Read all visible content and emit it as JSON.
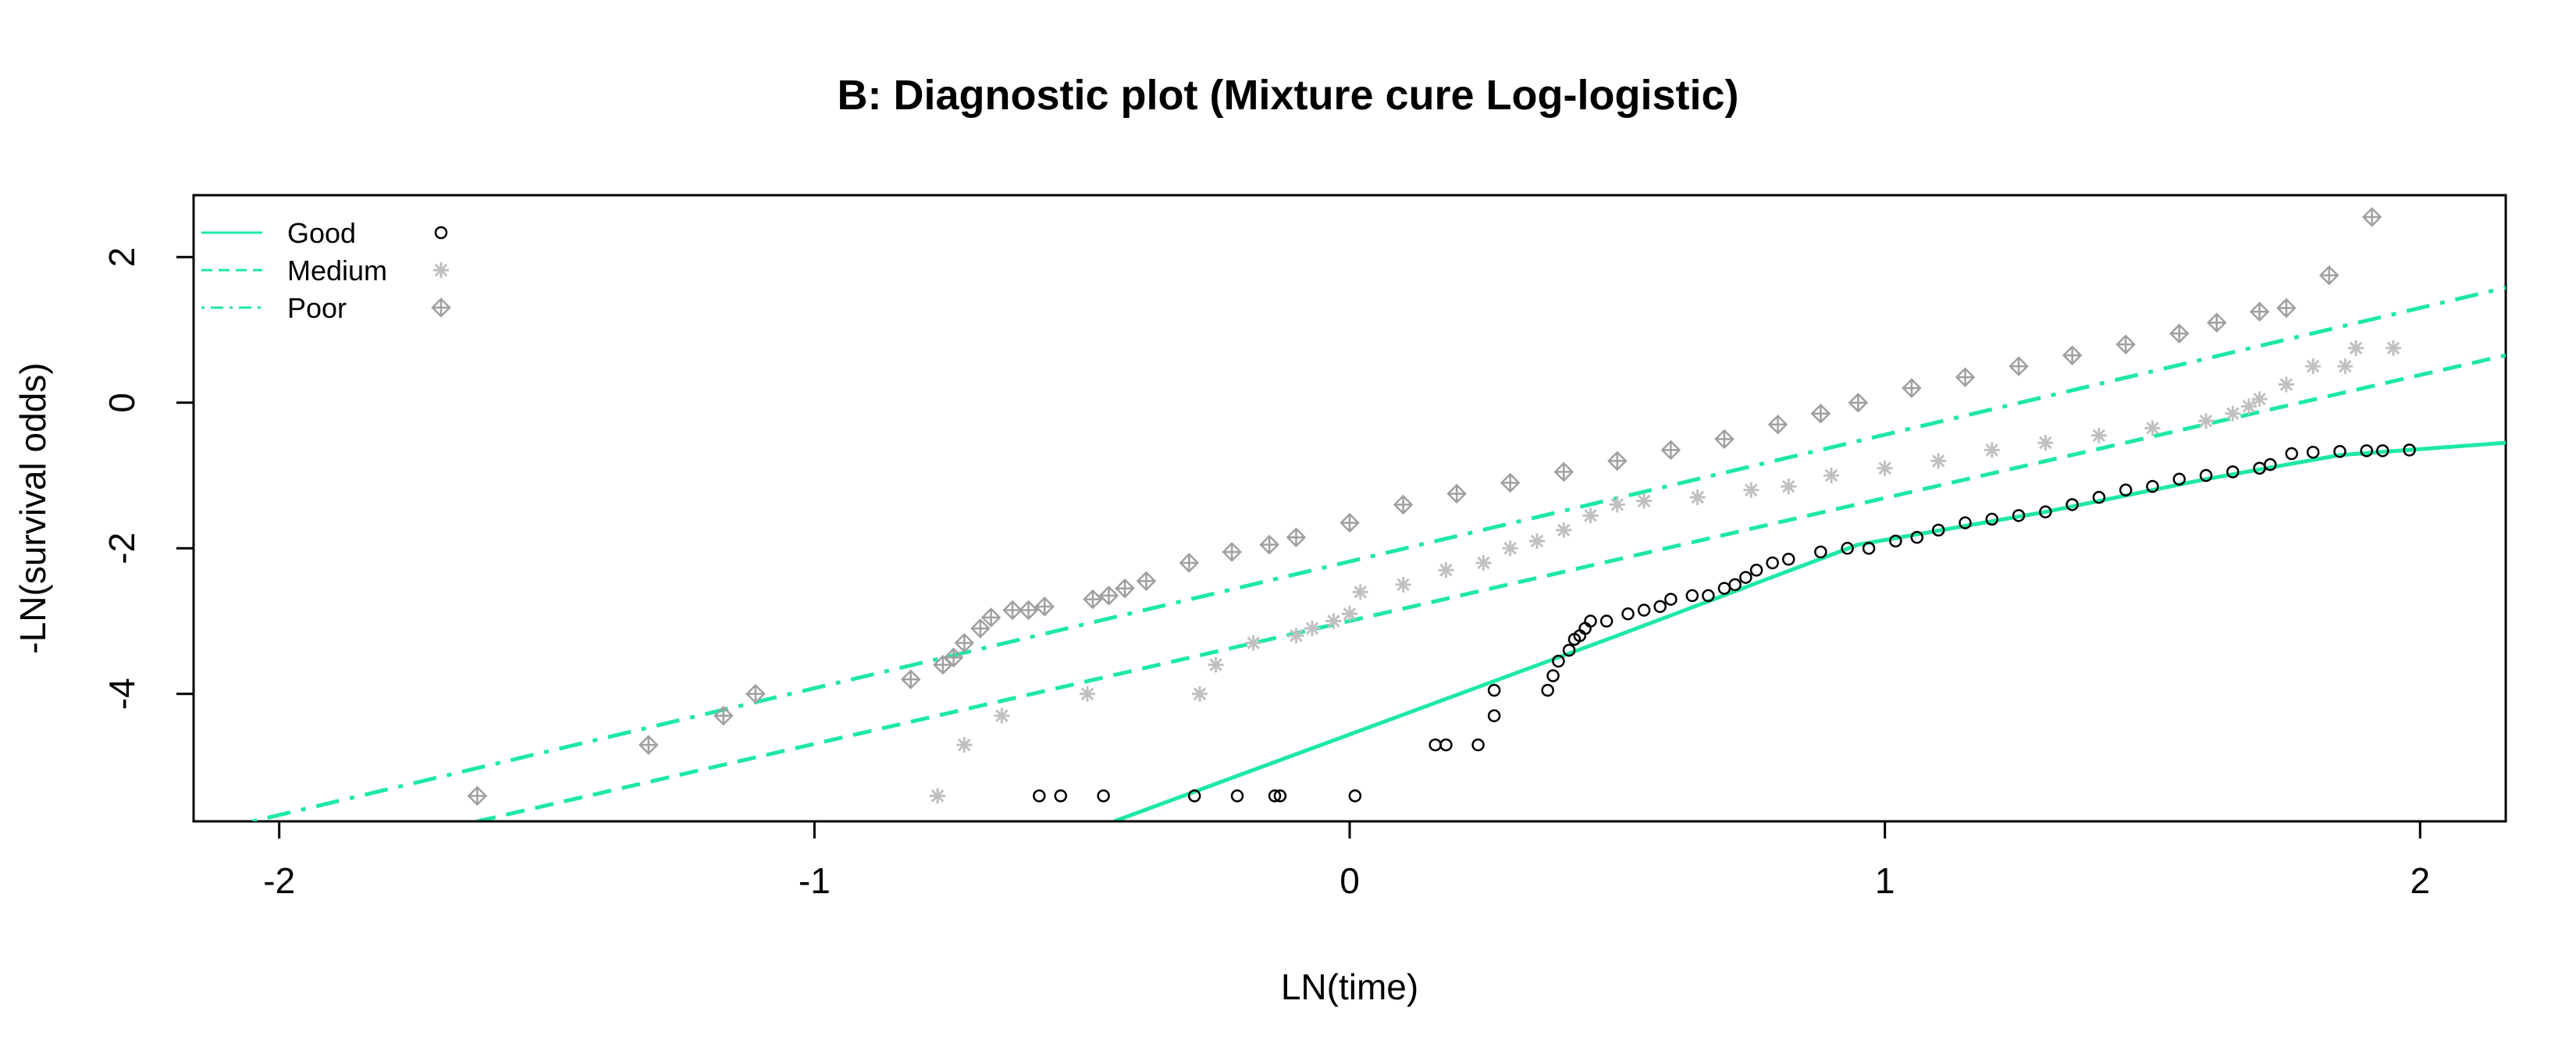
{
  "chart_data": {
    "type": "scatter",
    "title": "B: Diagnostic plot (Mixture cure Log-logistic)",
    "xlabel": "LN(time)",
    "ylabel": "-LN(survival odds)",
    "xlim": [
      -2.16,
      2.16
    ],
    "ylim": [
      -5.75,
      2.85
    ],
    "xticks": [
      -2,
      -1,
      0,
      1,
      2
    ],
    "yticks": [
      -4,
      -2,
      0,
      2
    ],
    "grid": false,
    "legend_position": "top-left",
    "series": [
      {
        "name": "Good",
        "color_line": "#1DE9A2",
        "line_style": "solid",
        "marker": "circle",
        "marker_color": "#000000",
        "fitted_line": [
          [
            -0.44,
            -5.75
          ],
          [
            0.5,
            -3.2
          ],
          [
            0.95,
            -1.95
          ],
          [
            1.3,
            -1.5
          ],
          [
            1.6,
            -1.05
          ],
          [
            1.85,
            -0.72
          ],
          [
            2.16,
            -0.55
          ]
        ],
        "points": [
          [
            -0.58,
            -5.4
          ],
          [
            -0.54,
            -5.4
          ],
          [
            -0.46,
            -5.4
          ],
          [
            -0.29,
            -5.4
          ],
          [
            -0.21,
            -5.4
          ],
          [
            -0.14,
            -5.4
          ],
          [
            -0.13,
            -5.4
          ],
          [
            0.01,
            -5.4
          ],
          [
            0.16,
            -4.7
          ],
          [
            0.18,
            -4.7
          ],
          [
            0.24,
            -4.7
          ],
          [
            0.27,
            -4.3
          ],
          [
            0.27,
            -3.95
          ],
          [
            0.37,
            -3.95
          ],
          [
            0.38,
            -3.75
          ],
          [
            0.39,
            -3.55
          ],
          [
            0.41,
            -3.4
          ],
          [
            0.42,
            -3.25
          ],
          [
            0.43,
            -3.2
          ],
          [
            0.44,
            -3.1
          ],
          [
            0.45,
            -3.0
          ],
          [
            0.48,
            -3.0
          ],
          [
            0.52,
            -2.9
          ],
          [
            0.55,
            -2.85
          ],
          [
            0.58,
            -2.8
          ],
          [
            0.6,
            -2.7
          ],
          [
            0.64,
            -2.65
          ],
          [
            0.67,
            -2.65
          ],
          [
            0.7,
            -2.55
          ],
          [
            0.72,
            -2.5
          ],
          [
            0.74,
            -2.4
          ],
          [
            0.76,
            -2.3
          ],
          [
            0.79,
            -2.2
          ],
          [
            0.82,
            -2.15
          ],
          [
            0.88,
            -2.05
          ],
          [
            0.93,
            -2.0
          ],
          [
            0.97,
            -2.0
          ],
          [
            1.02,
            -1.9
          ],
          [
            1.06,
            -1.85
          ],
          [
            1.1,
            -1.75
          ],
          [
            1.15,
            -1.65
          ],
          [
            1.2,
            -1.6
          ],
          [
            1.25,
            -1.55
          ],
          [
            1.3,
            -1.5
          ],
          [
            1.35,
            -1.4
          ],
          [
            1.4,
            -1.3
          ],
          [
            1.45,
            -1.2
          ],
          [
            1.5,
            -1.15
          ],
          [
            1.55,
            -1.05
          ],
          [
            1.6,
            -1.0
          ],
          [
            1.65,
            -0.95
          ],
          [
            1.7,
            -0.9
          ],
          [
            1.72,
            -0.85
          ],
          [
            1.76,
            -0.7
          ],
          [
            1.8,
            -0.68
          ],
          [
            1.85,
            -0.67
          ],
          [
            1.9,
            -0.66
          ],
          [
            1.93,
            -0.66
          ],
          [
            1.98,
            -0.65
          ]
        ]
      },
      {
        "name": "Medium",
        "color_line": "#1DE9A2",
        "line_style": "dashed",
        "marker": "asterisk",
        "marker_color": "#C0C0C0",
        "fitted_line": [
          [
            -1.63,
            -5.75
          ],
          [
            2.16,
            0.65
          ]
        ],
        "points": [
          [
            -0.77,
            -5.4
          ],
          [
            -0.72,
            -4.7
          ],
          [
            -0.65,
            -4.3
          ],
          [
            -0.49,
            -4.0
          ],
          [
            -0.28,
            -4.0
          ],
          [
            -0.25,
            -3.6
          ],
          [
            -0.18,
            -3.3
          ],
          [
            -0.1,
            -3.2
          ],
          [
            -0.07,
            -3.1
          ],
          [
            -0.03,
            -3.0
          ],
          [
            0.0,
            -2.9
          ],
          [
            0.02,
            -2.6
          ],
          [
            0.1,
            -2.5
          ],
          [
            0.18,
            -2.3
          ],
          [
            0.25,
            -2.2
          ],
          [
            0.3,
            -2.0
          ],
          [
            0.35,
            -1.9
          ],
          [
            0.4,
            -1.75
          ],
          [
            0.45,
            -1.55
          ],
          [
            0.5,
            -1.4
          ],
          [
            0.55,
            -1.35
          ],
          [
            0.65,
            -1.3
          ],
          [
            0.75,
            -1.2
          ],
          [
            0.82,
            -1.15
          ],
          [
            0.9,
            -1.0
          ],
          [
            1.0,
            -0.9
          ],
          [
            1.1,
            -0.8
          ],
          [
            1.2,
            -0.65
          ],
          [
            1.3,
            -0.55
          ],
          [
            1.4,
            -0.45
          ],
          [
            1.5,
            -0.35
          ],
          [
            1.6,
            -0.25
          ],
          [
            1.65,
            -0.15
          ],
          [
            1.68,
            -0.05
          ],
          [
            1.7,
            0.05
          ],
          [
            1.75,
            0.25
          ],
          [
            1.8,
            0.5
          ],
          [
            1.86,
            0.5
          ],
          [
            1.88,
            0.75
          ],
          [
            1.95,
            0.75
          ]
        ]
      },
      {
        "name": "Poor",
        "color_line": "#1DE9A2",
        "line_style": "dotdash",
        "marker": "diamond-plus",
        "marker_color": "#A0A0A0",
        "fitted_line": [
          [
            -2.05,
            -5.75
          ],
          [
            2.16,
            1.58
          ]
        ],
        "points": [
          [
            -1.63,
            -5.4
          ],
          [
            -1.31,
            -4.7
          ],
          [
            -1.17,
            -4.3
          ],
          [
            -1.11,
            -4.0
          ],
          [
            -0.82,
            -3.8
          ],
          [
            -0.76,
            -3.6
          ],
          [
            -0.74,
            -3.5
          ],
          [
            -0.72,
            -3.3
          ],
          [
            -0.69,
            -3.1
          ],
          [
            -0.67,
            -2.95
          ],
          [
            -0.63,
            -2.85
          ],
          [
            -0.6,
            -2.85
          ],
          [
            -0.57,
            -2.8
          ],
          [
            -0.48,
            -2.7
          ],
          [
            -0.45,
            -2.65
          ],
          [
            -0.42,
            -2.55
          ],
          [
            -0.38,
            -2.45
          ],
          [
            -0.3,
            -2.2
          ],
          [
            -0.22,
            -2.05
          ],
          [
            -0.15,
            -1.95
          ],
          [
            -0.1,
            -1.85
          ],
          [
            0.0,
            -1.65
          ],
          [
            0.1,
            -1.4
          ],
          [
            0.2,
            -1.25
          ],
          [
            0.3,
            -1.1
          ],
          [
            0.4,
            -0.95
          ],
          [
            0.5,
            -0.8
          ],
          [
            0.6,
            -0.65
          ],
          [
            0.7,
            -0.5
          ],
          [
            0.8,
            -0.3
          ],
          [
            0.88,
            -0.15
          ],
          [
            0.95,
            0.0
          ],
          [
            1.05,
            0.2
          ],
          [
            1.15,
            0.35
          ],
          [
            1.25,
            0.5
          ],
          [
            1.35,
            0.65
          ],
          [
            1.45,
            0.8
          ],
          [
            1.55,
            0.95
          ],
          [
            1.62,
            1.1
          ],
          [
            1.7,
            1.25
          ],
          [
            1.75,
            1.3
          ],
          [
            1.83,
            1.75
          ],
          [
            1.91,
            2.55
          ]
        ]
      }
    ]
  }
}
